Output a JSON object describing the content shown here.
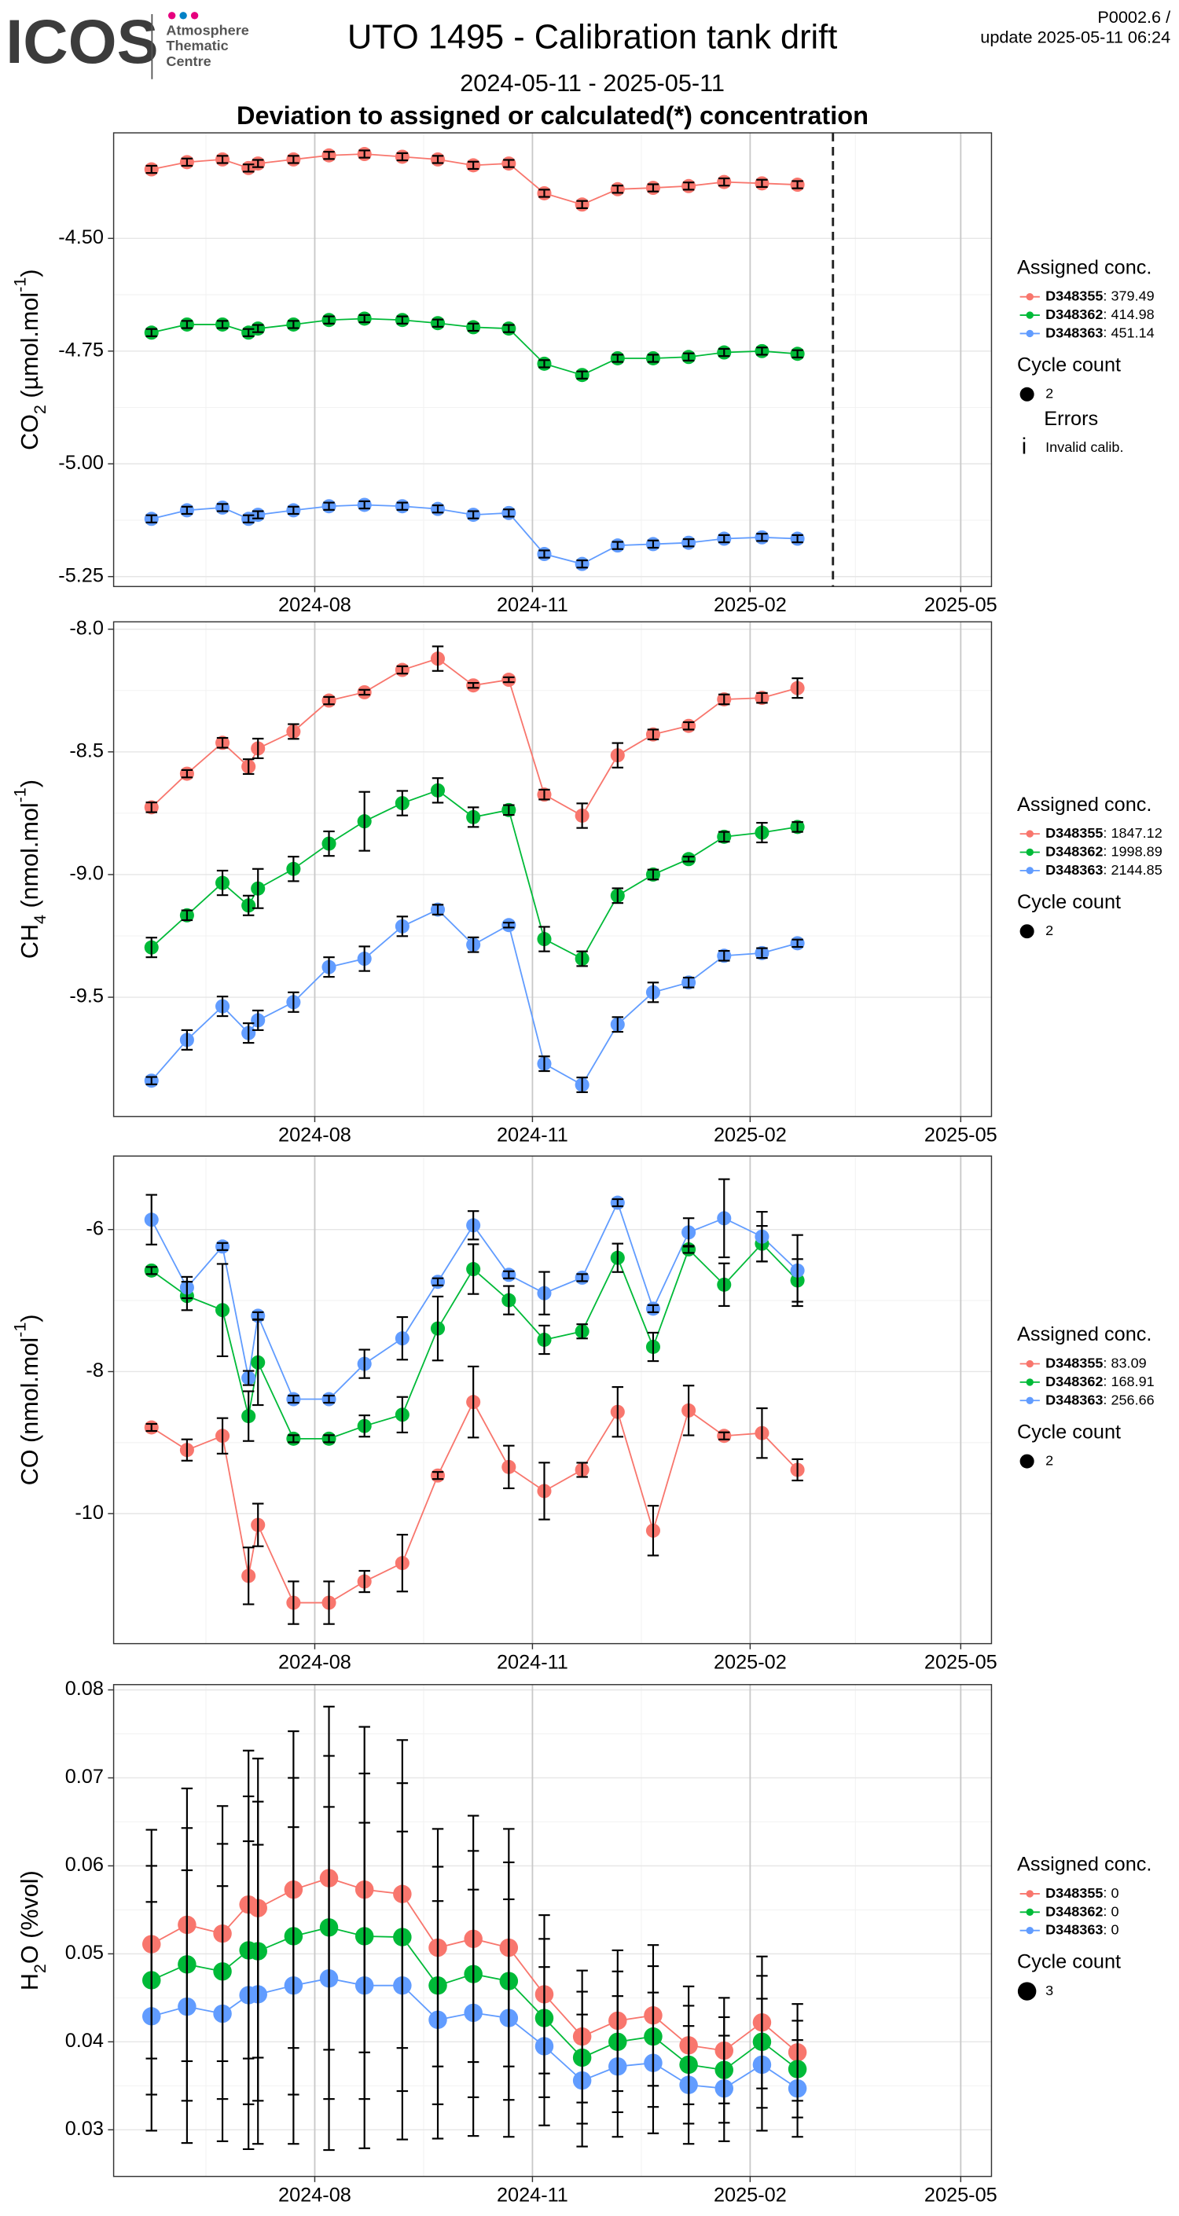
{
  "header": {
    "logo": "ICOS",
    "logo_lines": [
      "Atmosphere",
      "Thematic",
      "Centre"
    ],
    "title": "UTO 1495 - Calibration tank drift",
    "period": "2024-05-11 - 2025-05-11",
    "subtitle": "Deviation to assigned or calculated(*) concentration",
    "version": "P0002.6 /",
    "update": "update  2025-05-11 06:24"
  },
  "chart_data": [
    {
      "type": "line",
      "ylabel": [
        {
          "text": "CO"
        },
        {
          "text": "2",
          "shift": "sub"
        },
        {
          "text": " (µmol.mol"
        },
        {
          "text": "-1",
          "shift": "sup"
        },
        {
          "text": ")"
        }
      ],
      "x": [
        "2024-05-24",
        "2024-06-08",
        "2024-06-23",
        "2024-07-04",
        "2024-07-08",
        "2024-07-23",
        "2024-08-07",
        "2024-08-22",
        "2024-09-07",
        "2024-09-22",
        "2024-10-07",
        "2024-10-22",
        "2024-11-06",
        "2024-11-22",
        "2024-12-07",
        "2024-12-22",
        "2025-01-06",
        "2025-01-21",
        "2025-02-06",
        "2025-02-21"
      ],
      "xlim": [
        "2024-05-08",
        "2025-05-14"
      ],
      "xticks": [
        "2024-08",
        "2024-11",
        "2025-02",
        "2025-05"
      ],
      "ylim": [
        -5.272,
        -4.266
      ],
      "yticks": [
        {
          "value": -4.5,
          "label": "-4.50"
        },
        -4.75,
        {
          "value": -5,
          "label": "-5.00"
        },
        -5.25
      ],
      "grid": true,
      "vline_x": "2025-03-08",
      "legend_title": "Assigned conc.",
      "series": [
        {
          "name": "D348355",
          "assigned": 379.49,
          "color": "#F8766D",
          "values": [
            -4.347,
            -4.331,
            -4.325,
            -4.344,
            -4.334,
            -4.325,
            -4.316,
            -4.313,
            -4.319,
            -4.325,
            -4.338,
            -4.334,
            -4.4,
            -4.425,
            -4.391,
            -4.388,
            -4.384,
            -4.375,
            -4.378,
            -4.381
          ],
          "errors": [
            0.008,
            0.008,
            0.008,
            0.008,
            0.008,
            0.008,
            0.008,
            0.008,
            0.008,
            0.008,
            0.008,
            0.008,
            0.008,
            0.008,
            0.008,
            0.008,
            0.008,
            0.008,
            0.008,
            0.008
          ]
        },
        {
          "name": "D348362",
          "assigned": 414.98,
          "color": "#00BA38",
          "values": [
            -4.709,
            -4.691,
            -4.691,
            -4.709,
            -4.7,
            -4.691,
            -4.681,
            -4.678,
            -4.681,
            -4.688,
            -4.697,
            -4.7,
            -4.778,
            -4.803,
            -4.766,
            -4.766,
            -4.763,
            -4.753,
            -4.75,
            -4.756
          ],
          "errors": [
            0.008,
            0.008,
            0.008,
            0.008,
            0.008,
            0.008,
            0.008,
            0.008,
            0.008,
            0.008,
            0.008,
            0.008,
            0.008,
            0.008,
            0.008,
            0.008,
            0.008,
            0.008,
            0.008,
            0.008
          ]
        },
        {
          "name": "D348363",
          "assigned": 451.14,
          "color": "#619CFF",
          "values": [
            -5.122,
            -5.103,
            -5.097,
            -5.122,
            -5.113,
            -5.103,
            -5.094,
            -5.091,
            -5.094,
            -5.1,
            -5.113,
            -5.109,
            -5.2,
            -5.222,
            -5.181,
            -5.178,
            -5.175,
            -5.166,
            -5.163,
            -5.166
          ],
          "errors": [
            0.008,
            0.008,
            0.008,
            0.008,
            0.008,
            0.008,
            0.008,
            0.008,
            0.008,
            0.008,
            0.008,
            0.008,
            0.008,
            0.008,
            0.008,
            0.008,
            0.008,
            0.008,
            0.008,
            0.008
          ]
        }
      ],
      "cycle_count": {
        "title": "Cycle count",
        "value": 2
      },
      "errors_legend": {
        "title": "Errors",
        "symbol": "i",
        "entries": [
          "Invalid calib."
        ]
      }
    },
    {
      "type": "line",
      "ylabel": [
        {
          "text": "CH"
        },
        {
          "text": "4",
          "shift": "sub"
        },
        {
          "text": " (nmol.mol"
        },
        {
          "text": "-1",
          "shift": "sup"
        },
        {
          "text": ")"
        }
      ],
      "x": [
        "2024-05-24",
        "2024-06-08",
        "2024-06-23",
        "2024-07-04",
        "2024-07-08",
        "2024-07-23",
        "2024-08-07",
        "2024-08-22",
        "2024-09-07",
        "2024-09-22",
        "2024-10-07",
        "2024-10-22",
        "2024-11-06",
        "2024-11-22",
        "2024-12-07",
        "2024-12-22",
        "2025-01-06",
        "2025-01-21",
        "2025-02-06",
        "2025-02-21"
      ],
      "xlim": [
        "2024-05-08",
        "2025-05-14"
      ],
      "xticks": [
        "2024-08",
        "2024-11",
        "2025-02",
        "2025-05"
      ],
      "ylim": [
        -9.986,
        -7.97
      ],
      "yticks": [
        {
          "value": -8,
          "label": "-8.0"
        },
        -8.5,
        {
          "value": -9,
          "label": "-9.0"
        },
        -9.5
      ],
      "grid": true,
      "legend_title": "Assigned conc.",
      "series": [
        {
          "name": "D348355",
          "assigned": 1847.12,
          "color": "#F8766D",
          "values": [
            -8.726,
            -8.589,
            -8.463,
            -8.56,
            -8.486,
            -8.417,
            -8.291,
            -8.257,
            -8.166,
            -8.12,
            -8.229,
            -8.206,
            -8.674,
            -8.76,
            -8.514,
            -8.429,
            -8.394,
            -8.286,
            -8.28,
            -8.24
          ],
          "errors": [
            0.02,
            0.015,
            0.02,
            0.03,
            0.04,
            0.03,
            0.015,
            0.01,
            0.015,
            0.05,
            0.01,
            0.01,
            0.02,
            0.05,
            0.05,
            0.02,
            0.015,
            0.02,
            0.02,
            0.04
          ]
        },
        {
          "name": "D348362",
          "assigned": 1998.89,
          "color": "#00BA38",
          "values": [
            -9.297,
            -9.166,
            -9.034,
            -9.126,
            -9.057,
            -8.977,
            -8.874,
            -8.783,
            -8.709,
            -8.657,
            -8.766,
            -8.737,
            -9.263,
            -9.343,
            -9.086,
            -9,
            -8.937,
            -8.846,
            -8.829,
            -8.806
          ],
          "errors": [
            0.04,
            0.02,
            0.05,
            0.04,
            0.08,
            0.05,
            0.05,
            0.12,
            0.05,
            0.05,
            0.04,
            0.02,
            0.05,
            0.03,
            0.03,
            0.02,
            0.01,
            0.02,
            0.04,
            0.02
          ]
        },
        {
          "name": "D348363",
          "assigned": 2144.85,
          "color": "#619CFF",
          "values": [
            -9.84,
            -9.674,
            -9.537,
            -9.646,
            -9.594,
            -9.52,
            -9.377,
            -9.343,
            -9.211,
            -9.143,
            -9.286,
            -9.206,
            -9.771,
            -9.857,
            -9.611,
            -9.48,
            -9.44,
            -9.331,
            -9.32,
            -9.28
          ],
          "errors": [
            0.015,
            0.04,
            0.04,
            0.04,
            0.04,
            0.04,
            0.04,
            0.05,
            0.04,
            0.02,
            0.03,
            0.01,
            0.03,
            0.03,
            0.03,
            0.04,
            0.02,
            0.02,
            0.02,
            0.015
          ]
        }
      ],
      "cycle_count": {
        "title": "Cycle count",
        "value": 2
      }
    },
    {
      "type": "line",
      "ylabel": [
        {
          "text": "CO (nmol.mol"
        },
        {
          "text": "-1",
          "shift": "sup"
        },
        {
          "text": ")"
        }
      ],
      "x": [
        "2024-05-24",
        "2024-06-08",
        "2024-06-23",
        "2024-07-04",
        "2024-07-08",
        "2024-07-23",
        "2024-08-07",
        "2024-08-22",
        "2024-09-07",
        "2024-09-22",
        "2024-10-07",
        "2024-10-22",
        "2024-11-06",
        "2024-11-22",
        "2024-12-07",
        "2024-12-22",
        "2025-01-06",
        "2025-01-21",
        "2025-02-06",
        "2025-02-21"
      ],
      "xlim": [
        "2024-05-08",
        "2025-05-14"
      ],
      "xticks": [
        "2024-08",
        "2024-11",
        "2025-02",
        "2025-05"
      ],
      "ylim": [
        -11.83,
        -4.965
      ],
      "yticks": [
        -6,
        -8,
        -10
      ],
      "grid": true,
      "legend_title": "Assigned conc.",
      "series": [
        {
          "name": "D348355",
          "assigned": 83.09,
          "color": "#F8766D",
          "values": [
            -8.786,
            -9.104,
            -8.905,
            -10.876,
            -10.159,
            -11.254,
            -11.254,
            -10.955,
            -10.696,
            -9.463,
            -8.428,
            -9.343,
            -9.682,
            -9.383,
            -8.567,
            -10.239,
            -8.547,
            -8.905,
            -8.866,
            -9.383
          ],
          "errors": [
            0.05,
            0.15,
            0.25,
            0.4,
            0.3,
            0.3,
            0.3,
            0.15,
            0.4,
            0.05,
            0.5,
            0.3,
            0.4,
            0.1,
            0.35,
            0.35,
            0.35,
            0.05,
            0.35,
            0.15
          ]
        },
        {
          "name": "D348362",
          "assigned": 168.91,
          "color": "#00BA38",
          "values": [
            -6.577,
            -6.935,
            -7.134,
            -8.627,
            -7.871,
            -8.945,
            -8.945,
            -8.766,
            -8.607,
            -7.393,
            -6.557,
            -6.995,
            -7.552,
            -7.433,
            -6.398,
            -7.652,
            -6.279,
            -6.776,
            -6.199,
            -6.716
          ],
          "errors": [
            0.05,
            0.2,
            0.65,
            0.35,
            0.6,
            0.05,
            0.05,
            0.15,
            0.25,
            0.45,
            0.35,
            0.2,
            0.2,
            0.1,
            0.2,
            0.2,
            0.05,
            0.3,
            0.25,
            0.3
          ]
        },
        {
          "name": "D348363",
          "assigned": 256.66,
          "color": "#619CFF",
          "values": [
            -5.861,
            -6.816,
            -6.239,
            -8.09,
            -7.214,
            -8.388,
            -8.388,
            -7.891,
            -7.532,
            -6.736,
            -5.94,
            -6.637,
            -6.896,
            -6.677,
            -5.622,
            -7.114,
            -6.04,
            -5.841,
            -6.1,
            -6.577
          ],
          "errors": [
            0.35,
            0.15,
            0.05,
            0.1,
            0.05,
            0.05,
            0.05,
            0.2,
            0.3,
            0.05,
            0.2,
            0.05,
            0.3,
            0.05,
            0.05,
            0.05,
            0.2,
            0.55,
            0.35,
            0.5
          ]
        }
      ],
      "cycle_count": {
        "title": "Cycle count",
        "value": 2
      }
    },
    {
      "type": "line",
      "ylabel": [
        {
          "text": "H"
        },
        {
          "text": "2",
          "shift": "sub"
        },
        {
          "text": "O (%vol)"
        }
      ],
      "x": [
        "2024-05-24",
        "2024-06-08",
        "2024-06-23",
        "2024-07-04",
        "2024-07-08",
        "2024-07-23",
        "2024-08-07",
        "2024-08-22",
        "2024-09-07",
        "2024-09-22",
        "2024-10-07",
        "2024-10-22",
        "2024-11-06",
        "2024-11-22",
        "2024-12-07",
        "2024-12-22",
        "2025-01-06",
        "2025-01-21",
        "2025-02-06",
        "2025-02-21"
      ],
      "xlim": [
        "2024-05-08",
        "2025-05-14"
      ],
      "xticks": [
        "2024-08",
        "2024-11",
        "2025-02",
        "2025-05"
      ],
      "ylim": [
        0.0247,
        0.0806
      ],
      "yticks": [
        0.03,
        0.04,
        0.05,
        0.06,
        0.07,
        0.08
      ],
      "grid": true,
      "legend_title": "Assigned conc.",
      "series": [
        {
          "name": "D348355",
          "assigned": 0,
          "color": "#F8766D",
          "values": [
            0.0511,
            0.0533,
            0.0523,
            0.0556,
            0.0552,
            0.0573,
            0.0586,
            0.0573,
            0.0568,
            0.0507,
            0.0517,
            0.0507,
            0.0454,
            0.0406,
            0.0424,
            0.043,
            0.0396,
            0.039,
            0.0422,
            0.0388
          ],
          "errors": [
            0.013,
            0.0155,
            0.0145,
            0.0175,
            0.017,
            0.018,
            0.0195,
            0.0185,
            0.0175,
            0.0135,
            0.014,
            0.0135,
            0.009,
            0.0075,
            0.008,
            0.008,
            0.0067,
            0.006,
            0.0075,
            0.0055
          ]
        },
        {
          "name": "D348362",
          "assigned": 0,
          "color": "#00BA38",
          "values": [
            0.047,
            0.0488,
            0.048,
            0.0504,
            0.0503,
            0.052,
            0.053,
            0.052,
            0.0519,
            0.0464,
            0.0477,
            0.0469,
            0.0427,
            0.0382,
            0.04,
            0.0406,
            0.0374,
            0.0368,
            0.04,
            0.0369
          ],
          "errors": [
            0.013,
            0.0155,
            0.0145,
            0.0175,
            0.017,
            0.018,
            0.0195,
            0.0185,
            0.0175,
            0.0135,
            0.014,
            0.0135,
            0.009,
            0.0075,
            0.008,
            0.008,
            0.0067,
            0.006,
            0.0075,
            0.0055
          ]
        },
        {
          "name": "D348363",
          "assigned": 0,
          "color": "#619CFF",
          "values": [
            0.0429,
            0.044,
            0.0432,
            0.0453,
            0.0454,
            0.0464,
            0.0472,
            0.0464,
            0.0464,
            0.0425,
            0.0433,
            0.0427,
            0.0395,
            0.0356,
            0.0372,
            0.0376,
            0.0351,
            0.0347,
            0.0374,
            0.0347
          ],
          "errors": [
            0.013,
            0.0155,
            0.0145,
            0.0175,
            0.017,
            0.018,
            0.0195,
            0.0185,
            0.0175,
            0.0135,
            0.014,
            0.0135,
            0.009,
            0.0075,
            0.008,
            0.008,
            0.0067,
            0.006,
            0.0075,
            0.0055
          ]
        }
      ],
      "cycle_count": {
        "title": "Cycle count",
        "value": 3
      }
    }
  ]
}
